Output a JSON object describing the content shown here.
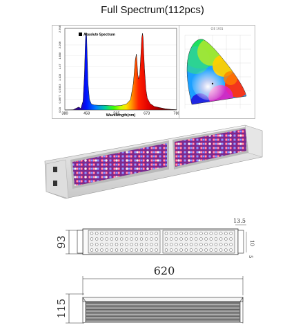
{
  "header": {
    "title": "Full Spectrum(112pcs)"
  },
  "spectrum_chart": {
    "legend_label": "Absolute Spectrum",
    "x_ticks": [
      "380",
      "458",
      "565",
      "673",
      "780"
    ],
    "x_label": "Wavelength(nm)",
    "y_ticks": [
      "0.00",
      "0.3677",
      "0.7353",
      "1.103",
      "1.47",
      "1.838",
      "2.206",
      "2.7683"
    ]
  },
  "chart_data": {
    "type": "line",
    "title": "",
    "legend": "Absolute Spectrum",
    "xlabel": "Wavelength(nm)",
    "ylabel": "",
    "xlim": [
      380,
      780
    ],
    "ylim": [
      0,
      2.7683
    ],
    "x_ticks": [
      380,
      458,
      565,
      673,
      780
    ],
    "y_ticks": [
      0.0,
      0.3677,
      0.7353,
      1.103,
      1.47,
      1.838,
      2.206,
      2.7683
    ],
    "series": [
      {
        "x": [
          380,
          410,
          425,
          430,
          437,
          445,
          450,
          453,
          455,
          458,
          460,
          463,
          468,
          475,
          485,
          500,
          520,
          540,
          560,
          580,
          600,
          615,
          625,
          632,
          636,
          638,
          641,
          644,
          648,
          652,
          655,
          658,
          660,
          662,
          665,
          670,
          675,
          685,
          700,
          720,
          740,
          760,
          780
        ],
        "y": [
          0,
          0.01,
          0.08,
          0.1,
          0.05,
          0.3,
          1.2,
          2.2,
          2.62,
          2.5,
          1.8,
          0.9,
          0.35,
          0.2,
          0.17,
          0.16,
          0.16,
          0.15,
          0.14,
          0.15,
          0.2,
          0.35,
          0.9,
          1.7,
          1.9,
          1.65,
          1.2,
          1.05,
          1.2,
          1.9,
          2.45,
          2.6,
          2.45,
          2.0,
          1.4,
          0.7,
          0.4,
          0.22,
          0.12,
          0.08,
          0.04,
          0.02,
          0.01
        ]
      }
    ]
  },
  "cie_chart": {
    "title": "CIE 1931"
  },
  "dimensions": {
    "height": "93",
    "width": "620",
    "side_height": "115",
    "bracket_top": "13.5",
    "bracket_side": "10",
    "bracket_bottom": "5"
  }
}
